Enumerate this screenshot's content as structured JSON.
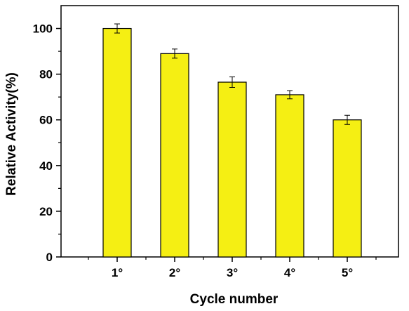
{
  "chart_data": {
    "type": "bar",
    "title": "",
    "xlabel": "Cycle number",
    "ylabel": "Relative Activity(%)",
    "categories": [
      "1°",
      "2°",
      "3°",
      "4°",
      "5°"
    ],
    "values": [
      100,
      89,
      76.5,
      71,
      60
    ],
    "errors": [
      2,
      2,
      2.3,
      1.8,
      2
    ],
    "ylim": [
      0,
      110
    ],
    "yticks": [
      0,
      20,
      40,
      60,
      80,
      100
    ],
    "ytick_labels": [
      "0",
      "20",
      "40",
      "60",
      "80",
      "100"
    ],
    "grid": false,
    "legend": "none",
    "colors": {
      "bar_fill": "#f5ef13",
      "bar_stroke": "#000000",
      "axis": "#000000"
    }
  }
}
